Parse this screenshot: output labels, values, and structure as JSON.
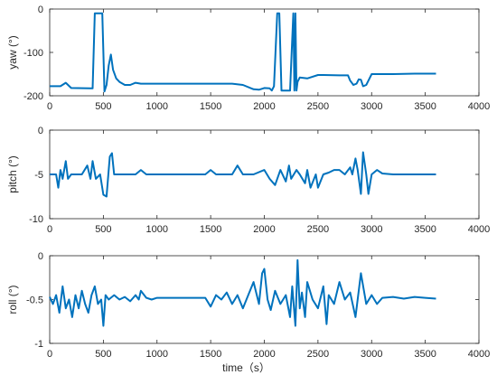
{
  "chart_data": [
    {
      "type": "line",
      "ylabel": "yaw (°)",
      "xlabel": "",
      "xlim": [
        0,
        4000
      ],
      "ylim": [
        -200,
        0
      ],
      "xticks": [
        0,
        500,
        1000,
        1500,
        2000,
        2500,
        3000,
        3500,
        4000
      ],
      "yticks": [
        -200,
        -100,
        0
      ],
      "grid": false,
      "color": "#0072BD",
      "x": [
        0,
        100,
        150,
        200,
        380,
        400,
        420,
        440,
        470,
        490,
        510,
        530,
        550,
        570,
        590,
        620,
        650,
        700,
        750,
        800,
        850,
        1000,
        1300,
        1700,
        1800,
        1900,
        1950,
        2000,
        2050,
        2070,
        2090,
        2120,
        2140,
        2160,
        2200,
        2240,
        2270,
        2280,
        2290,
        2300,
        2310,
        2330,
        2400,
        2500,
        2550,
        2700,
        2780,
        2800,
        2830,
        2860,
        2880,
        2900,
        2920,
        2950,
        2980,
        3000,
        3100,
        3200,
        3400,
        3500,
        3600
      ],
      "y": [
        -178,
        -178,
        -170,
        -182,
        -183,
        -183,
        -10,
        -10,
        -10,
        -10,
        -190,
        -175,
        -130,
        -105,
        -140,
        -160,
        -168,
        -175,
        -175,
        -170,
        -172,
        -172,
        -172,
        -172,
        -175,
        -185,
        -186,
        -182,
        -183,
        -188,
        -178,
        -10,
        -10,
        -188,
        -188,
        -188,
        -10,
        -188,
        -10,
        -188,
        -168,
        -158,
        -160,
        -152,
        -152,
        -153,
        -153,
        -165,
        -175,
        -172,
        -162,
        -163,
        -178,
        -175,
        -160,
        -150,
        -150,
        -150,
        -149,
        -149,
        -149
      ]
    },
    {
      "type": "line",
      "ylabel": "pitch (°)",
      "xlabel": "",
      "xlim": [
        0,
        4000
      ],
      "ylim": [
        -10,
        0
      ],
      "xticks": [
        0,
        500,
        1000,
        1500,
        2000,
        2500,
        3000,
        3500,
        4000
      ],
      "yticks": [
        -10,
        -5,
        0
      ],
      "grid": false,
      "color": "#0072BD",
      "x": [
        0,
        60,
        80,
        100,
        120,
        150,
        170,
        200,
        300,
        350,
        380,
        400,
        430,
        470,
        500,
        530,
        560,
        580,
        600,
        640,
        700,
        800,
        850,
        900,
        1000,
        1200,
        1450,
        1500,
        1550,
        1700,
        1750,
        1800,
        1900,
        2000,
        2050,
        2100,
        2150,
        2200,
        2230,
        2250,
        2300,
        2330,
        2380,
        2400,
        2430,
        2480,
        2500,
        2550,
        2600,
        2650,
        2700,
        2750,
        2800,
        2820,
        2850,
        2870,
        2900,
        2920,
        2950,
        2970,
        3000,
        3050,
        3100,
        3200,
        3400,
        3600
      ],
      "y": [
        -5,
        -5,
        -6.5,
        -4.5,
        -5.5,
        -3.5,
        -5.5,
        -5,
        -5,
        -4,
        -5.5,
        -3.5,
        -5.5,
        -5,
        -7.3,
        -7.5,
        -3,
        -2.6,
        -5,
        -5,
        -5,
        -5,
        -4.5,
        -5,
        -5,
        -5,
        -5,
        -4.5,
        -5,
        -5,
        -4,
        -5,
        -5,
        -4.5,
        -5.5,
        -6.2,
        -4.5,
        -5.8,
        -4,
        -5.5,
        -4.5,
        -5,
        -6,
        -4.5,
        -6.5,
        -5,
        -6.5,
        -5,
        -4.8,
        -4.5,
        -4.5,
        -5,
        -4.2,
        -5,
        -3.2,
        -4.5,
        -7.2,
        -2.5,
        -5,
        -7.2,
        -5,
        -4.5,
        -4.9,
        -5,
        -5,
        -5
      ]
    },
    {
      "type": "line",
      "ylabel": "roll (°)",
      "xlabel": "time（s）",
      "xlim": [
        0,
        4000
      ],
      "ylim": [
        -1,
        0
      ],
      "xticks": [
        0,
        500,
        1000,
        1500,
        2000,
        2500,
        3000,
        3500,
        4000
      ],
      "yticks": [
        -1,
        -0.5,
        0
      ],
      "grid": false,
      "color": "#0072BD",
      "x": [
        0,
        30,
        60,
        90,
        120,
        150,
        180,
        210,
        240,
        270,
        300,
        330,
        360,
        390,
        420,
        450,
        480,
        500,
        520,
        550,
        600,
        650,
        700,
        750,
        800,
        830,
        850,
        900,
        950,
        1000,
        1100,
        1200,
        1300,
        1450,
        1500,
        1550,
        1600,
        1650,
        1700,
        1750,
        1800,
        1850,
        1900,
        1950,
        1980,
        2000,
        2030,
        2060,
        2100,
        2150,
        2200,
        2240,
        2260,
        2290,
        2310,
        2330,
        2350,
        2380,
        2400,
        2450,
        2500,
        2550,
        2580,
        2600,
        2650,
        2700,
        2750,
        2800,
        2850,
        2880,
        2900,
        2950,
        3000,
        3050,
        3100,
        3200,
        3300,
        3400,
        3500,
        3600
      ],
      "y": [
        -0.47,
        -0.55,
        -0.45,
        -0.65,
        -0.35,
        -0.6,
        -0.5,
        -0.7,
        -0.45,
        -0.6,
        -0.4,
        -0.55,
        -0.65,
        -0.45,
        -0.35,
        -0.55,
        -0.5,
        -0.8,
        -0.45,
        -0.5,
        -0.45,
        -0.5,
        -0.47,
        -0.52,
        -0.45,
        -0.5,
        -0.4,
        -0.48,
        -0.5,
        -0.48,
        -0.48,
        -0.48,
        -0.48,
        -0.48,
        -0.58,
        -0.45,
        -0.5,
        -0.42,
        -0.55,
        -0.45,
        -0.6,
        -0.45,
        -0.3,
        -0.55,
        -0.2,
        -0.15,
        -0.5,
        -0.62,
        -0.4,
        -0.55,
        -0.45,
        -0.7,
        -0.35,
        -0.8,
        -0.05,
        -0.6,
        -0.42,
        -0.7,
        -0.3,
        -0.5,
        -0.6,
        -0.35,
        -0.78,
        -0.45,
        -0.55,
        -0.3,
        -0.5,
        -0.42,
        -0.7,
        -0.4,
        -0.2,
        -0.55,
        -0.45,
        -0.55,
        -0.48,
        -0.47,
        -0.49,
        -0.47,
        -0.48,
        -0.49
      ]
    }
  ]
}
